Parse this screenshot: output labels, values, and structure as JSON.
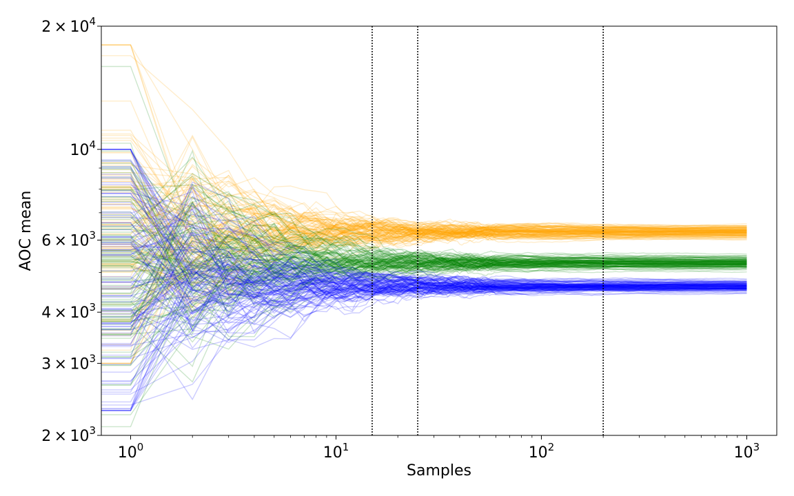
{
  "chart_data": {
    "type": "line",
    "title": "",
    "xlabel": "Samples",
    "ylabel": "AOC mean",
    "xscale": "log",
    "yscale": "log",
    "xlim": [
      0.72,
      1400
    ],
    "ylim": [
      2000,
      20000
    ],
    "grid": false,
    "legend": "none",
    "x_ticks": [
      {
        "value": 1,
        "base": "10",
        "exp": "0"
      },
      {
        "value": 10,
        "base": "10",
        "exp": "1"
      },
      {
        "value": 100,
        "base": "10",
        "exp": "2"
      },
      {
        "value": 1000,
        "base": "10",
        "exp": "3"
      }
    ],
    "y_ticks": [
      {
        "value": 2000,
        "mant": "2",
        "base": "10",
        "exp": "3"
      },
      {
        "value": 3000,
        "mant": "3",
        "base": "10",
        "exp": "3"
      },
      {
        "value": 4000,
        "mant": "4",
        "base": "10",
        "exp": "3"
      },
      {
        "value": 6000,
        "mant": "6",
        "base": "10",
        "exp": "3"
      },
      {
        "value": 10000,
        "mant": "",
        "base": "10",
        "exp": "4"
      },
      {
        "value": 20000,
        "mant": "2",
        "base": "10",
        "exp": "4"
      }
    ],
    "vlines": [
      15,
      25,
      200
    ],
    "series": [
      {
        "color": "#ffa500",
        "run_count": 100,
        "final_mean": 6300,
        "final_spread": 0.018,
        "initial_range": [
          3000,
          18000
        ]
      },
      {
        "color": "#008000",
        "run_count": 100,
        "final_mean": 5280,
        "final_spread": 0.018,
        "initial_range": [
          2100,
          16000
        ]
      },
      {
        "color": "#0000ff",
        "run_count": 100,
        "final_mean": 4620,
        "final_spread": 0.018,
        "initial_range": [
          2300,
          10000
        ]
      }
    ],
    "line_alpha": 0.2,
    "x_max_sample": 1000
  }
}
